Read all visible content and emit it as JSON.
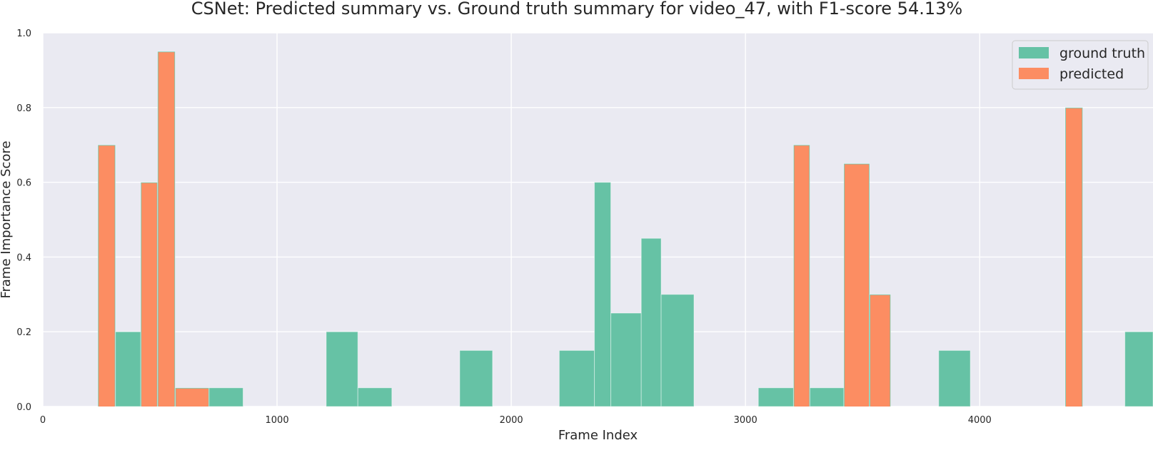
{
  "chart_data": {
    "type": "bar",
    "title": "CSNet: Predicted summary vs. Ground truth summary for video_47, with F1-score 54.13%",
    "xlabel": "Frame Index",
    "ylabel": "Frame Importance Score",
    "xlim": [
      0,
      4740
    ],
    "ylim": [
      0,
      1.0
    ],
    "xticks": [
      0,
      1000,
      2000,
      3000,
      4000
    ],
    "yticks": [
      0.0,
      0.2,
      0.4,
      0.6,
      0.8,
      1.0
    ],
    "xtick_labels": [
      "0",
      "1000",
      "2000",
      "3000",
      "4000"
    ],
    "ytick_labels": [
      "0.0",
      "0.2",
      "0.4",
      "0.6",
      "0.8",
      "1.0"
    ],
    "grid": true,
    "legend_position": "top-right",
    "colors": {
      "ground_truth": "#66c2a5",
      "predicted": "#fc8d62",
      "background": "#eaeaf2",
      "grid": "#ffffff"
    },
    "series": [
      {
        "name": "ground truth",
        "segments": [
          {
            "x0": 235,
            "x1": 310,
            "value": 0.7
          },
          {
            "x0": 310,
            "x1": 418,
            "value": 0.2
          },
          {
            "x0": 418,
            "x1": 490,
            "value": 0.6
          },
          {
            "x0": 490,
            "x1": 565,
            "value": 0.95
          },
          {
            "x0": 565,
            "x1": 710,
            "value": 0.05
          },
          {
            "x0": 710,
            "x1": 855,
            "value": 0.05
          },
          {
            "x0": 1210,
            "x1": 1345,
            "value": 0.2
          },
          {
            "x0": 1345,
            "x1": 1490,
            "value": 0.05
          },
          {
            "x0": 1780,
            "x1": 1920,
            "value": 0.15
          },
          {
            "x0": 2205,
            "x1": 2355,
            "value": 0.15
          },
          {
            "x0": 2355,
            "x1": 2425,
            "value": 0.6
          },
          {
            "x0": 2425,
            "x1": 2555,
            "value": 0.25
          },
          {
            "x0": 2555,
            "x1": 2640,
            "value": 0.45
          },
          {
            "x0": 2640,
            "x1": 2780,
            "value": 0.3
          },
          {
            "x0": 3055,
            "x1": 3205,
            "value": 0.05
          },
          {
            "x0": 3205,
            "x1": 3275,
            "value": 0.7
          },
          {
            "x0": 3275,
            "x1": 3420,
            "value": 0.05
          },
          {
            "x0": 3420,
            "x1": 3530,
            "value": 0.65
          },
          {
            "x0": 3530,
            "x1": 3620,
            "value": 0.3
          },
          {
            "x0": 3825,
            "x1": 3960,
            "value": 0.15
          },
          {
            "x0": 4365,
            "x1": 4440,
            "value": 0.8
          },
          {
            "x0": 4620,
            "x1": 4740,
            "value": 0.2
          }
        ]
      },
      {
        "name": "predicted",
        "segments": [
          {
            "x0": 235,
            "x1": 310,
            "value": 0.7
          },
          {
            "x0": 418,
            "x1": 490,
            "value": 0.6
          },
          {
            "x0": 490,
            "x1": 565,
            "value": 0.95
          },
          {
            "x0": 565,
            "x1": 710,
            "value": 0.05
          },
          {
            "x0": 3205,
            "x1": 3275,
            "value": 0.7
          },
          {
            "x0": 3420,
            "x1": 3530,
            "value": 0.65
          },
          {
            "x0": 3530,
            "x1": 3620,
            "value": 0.3
          },
          {
            "x0": 4365,
            "x1": 4440,
            "value": 0.8
          }
        ]
      }
    ]
  }
}
